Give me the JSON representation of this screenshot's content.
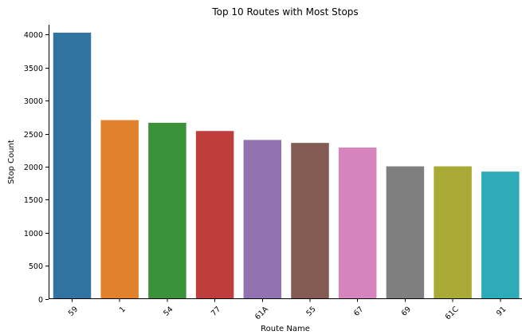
{
  "chart_data": {
    "type": "bar",
    "title": "Top 10 Routes with Most Stops",
    "xlabel": "Route Name",
    "ylabel": "Stop Count",
    "categories": [
      "59",
      "1",
      "54",
      "77",
      "61A",
      "55",
      "67",
      "69",
      "61C",
      "91"
    ],
    "values": [
      4030,
      2705,
      2665,
      2540,
      2405,
      2360,
      2290,
      2005,
      2005,
      1925
    ],
    "colors": [
      "#3274a1",
      "#e1812c",
      "#3a923a",
      "#c03d3e",
      "#9372b2",
      "#845b53",
      "#d684bd",
      "#7f7f7f",
      "#a9aa35",
      "#2eabb8"
    ],
    "ylim": [
      0,
      4150
    ],
    "yticks": [
      0,
      500,
      1000,
      1500,
      2000,
      2500,
      3000,
      3500,
      4000
    ],
    "grid": false,
    "legend": "none"
  }
}
